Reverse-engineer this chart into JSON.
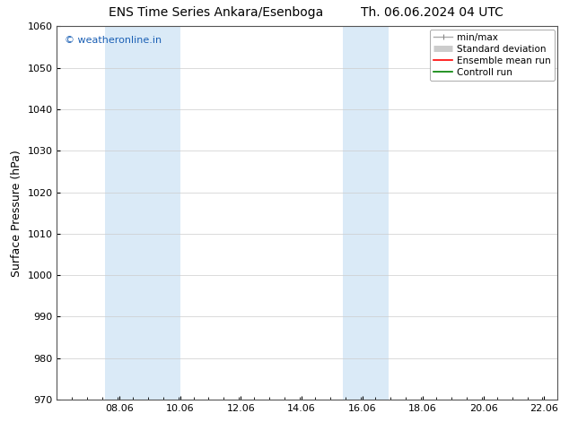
{
  "title_left": "ENS Time Series Ankara/Esenboga",
  "title_right": "Th. 06.06.2024 04 UTC",
  "ylabel": "Surface Pressure (hPa)",
  "ylim": [
    970,
    1060
  ],
  "yticks": [
    970,
    980,
    990,
    1000,
    1010,
    1020,
    1030,
    1040,
    1050,
    1060
  ],
  "xlim_start": 6.0,
  "xlim_end": 22.5,
  "xticks": [
    8.06,
    10.06,
    12.06,
    14.06,
    16.06,
    18.06,
    20.06,
    22.06
  ],
  "xtick_labels": [
    "08.06",
    "10.06",
    "12.06",
    "14.06",
    "16.06",
    "18.06",
    "20.06",
    "22.06"
  ],
  "shaded_bands": [
    {
      "x_start": 7.58,
      "x_end": 10.06
    },
    {
      "x_start": 15.42,
      "x_end": 16.92
    }
  ],
  "band_color": "#daeaf7",
  "watermark_text": "© weatheronline.in",
  "watermark_color": "#1a5fb4",
  "watermark_fontsize": 8,
  "background_color": "#ffffff",
  "plot_bg_color": "#ffffff",
  "legend_labels": [
    "min/max",
    "Standard deviation",
    "Ensemble mean run",
    "Controll run"
  ],
  "legend_colors": [
    "#aaaaaa",
    "#cccccc",
    "#ff0000",
    "#008000"
  ],
  "title_fontsize": 10,
  "tick_fontsize": 8,
  "ylabel_fontsize": 9,
  "legend_fontsize": 7.5
}
